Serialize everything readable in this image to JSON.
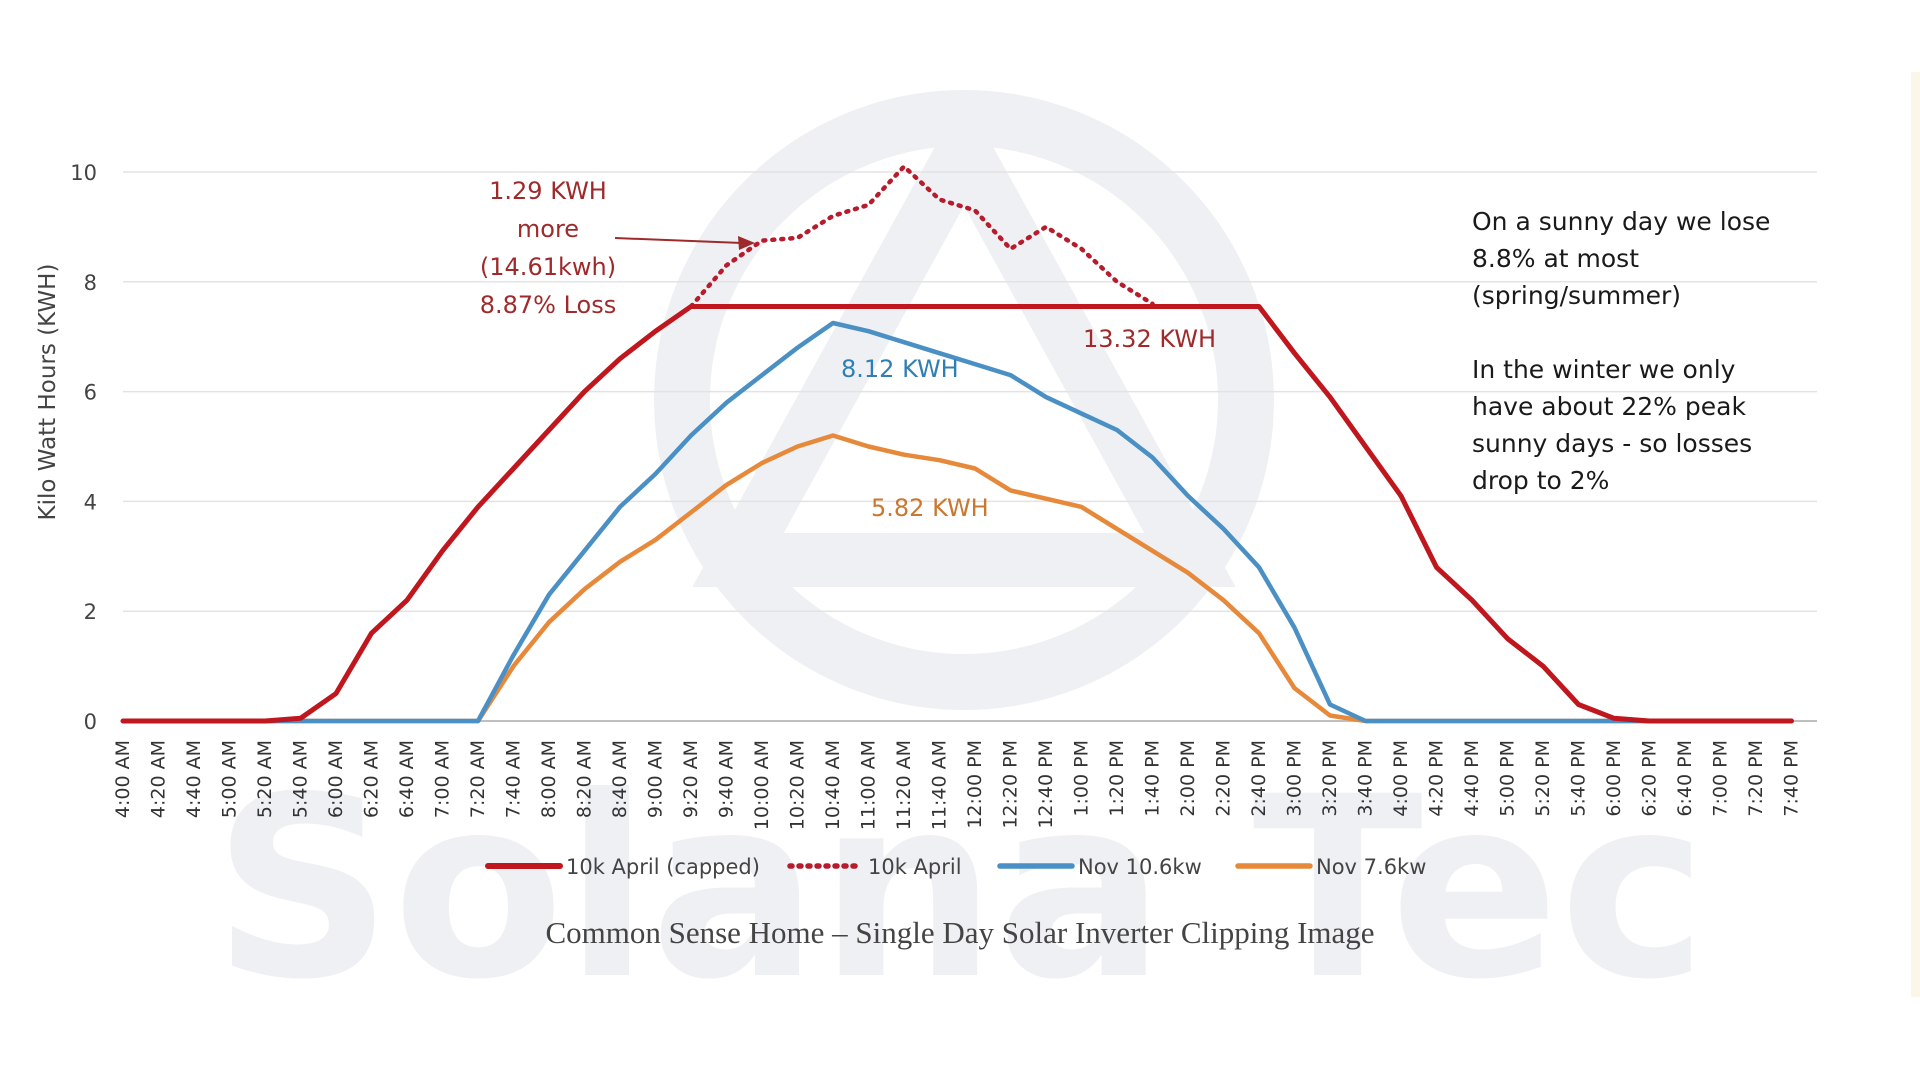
{
  "caption": "Common Sense Home – Single Day Solar Inverter Clipping Image",
  "watermark": "Solana Tec",
  "notes": {
    "sunny": [
      "On a sunny day we lose",
      "8.8% at most",
      "(spring/summer)"
    ],
    "winter": [
      "In the winter we only",
      "have about 22% peak",
      "sunny days - so losses",
      "drop to 2%"
    ]
  },
  "annotations": {
    "extra_lines": [
      "1.29 KWH",
      "more",
      "(14.61kwh)",
      "8.87% Loss"
    ],
    "capped_total": "13.32 KWH",
    "nov106_total": "8.12 KWH",
    "nov76_total": "5.82 KWH"
  },
  "colors": {
    "april_capped": "#c0161d",
    "april_dotted": "#b71c2c",
    "nov_106": "#4a90c4",
    "nov_76": "#e6893a",
    "annotation_red": "#9e2a2b",
    "annotation_blue": "#2f7fb6",
    "annotation_orange": "#c8782f",
    "watermark": "#eef0f4"
  },
  "chart_data": {
    "type": "line",
    "ylabel": "Kilo Watt Hours (KWH)",
    "xlabel": "",
    "ylim": [
      0,
      10
    ],
    "yticks": [
      0,
      2,
      4,
      6,
      8,
      10
    ],
    "grid": true,
    "legend_position": "bottom",
    "categories": [
      "4:00 AM",
      "4:20 AM",
      "4:40 AM",
      "5:00 AM",
      "5:20 AM",
      "5:40 AM",
      "6:00 AM",
      "6:20 AM",
      "6:40 AM",
      "7:00 AM",
      "7:20 AM",
      "7:40 AM",
      "8:00 AM",
      "8:20 AM",
      "8:40 AM",
      "9:00 AM",
      "9:20 AM",
      "9:40 AM",
      "10:00 AM",
      "10:20 AM",
      "10:40 AM",
      "11:00 AM",
      "11:20 AM",
      "11:40 AM",
      "12:00 PM",
      "12:20 PM",
      "12:40 PM",
      "1:00 PM",
      "1:20 PM",
      "1:40 PM",
      "2:00 PM",
      "2:20 PM",
      "2:40 PM",
      "3:00 PM",
      "3:20 PM",
      "3:40 PM",
      "4:00 PM",
      "4:20 PM",
      "4:40 PM",
      "5:00 PM",
      "5:20 PM",
      "5:40 PM",
      "6:00 PM",
      "6:20 PM",
      "6:40 PM",
      "7:00 PM",
      "7:20 PM",
      "7:40 PM"
    ],
    "series": [
      {
        "name": "10k April (capped)",
        "values": [
          0,
          0,
          0,
          0,
          0,
          0.05,
          0.5,
          1.6,
          2.2,
          3.1,
          3.9,
          4.6,
          5.3,
          6.0,
          6.6,
          7.1,
          7.55,
          7.55,
          7.55,
          7.55,
          7.55,
          7.55,
          7.55,
          7.55,
          7.55,
          7.55,
          7.55,
          7.55,
          7.55,
          7.55,
          7.55,
          7.55,
          7.55,
          6.7,
          5.9,
          5.0,
          4.1,
          2.8,
          2.2,
          1.5,
          1.0,
          0.3,
          0.05,
          0,
          0,
          0,
          0,
          0
        ]
      },
      {
        "name": "10k April",
        "values": [
          null,
          null,
          null,
          null,
          null,
          null,
          null,
          null,
          null,
          null,
          null,
          null,
          null,
          null,
          null,
          null,
          7.55,
          8.3,
          8.75,
          8.8,
          9.2,
          9.4,
          10.1,
          9.5,
          9.3,
          8.6,
          9.0,
          8.6,
          8.0,
          7.6,
          null,
          null,
          null,
          null,
          null,
          null,
          null,
          null,
          null,
          null,
          null,
          null,
          null,
          null,
          null,
          null,
          null,
          null
        ]
      },
      {
        "name": "Nov 10.6kw",
        "values": [
          0,
          0,
          0,
          0,
          0,
          0,
          0,
          0,
          0,
          0,
          0,
          1.2,
          2.3,
          3.1,
          3.9,
          4.5,
          5.2,
          5.8,
          6.3,
          6.8,
          7.25,
          7.1,
          6.9,
          6.7,
          6.5,
          6.3,
          5.9,
          5.6,
          5.3,
          4.8,
          4.1,
          3.5,
          2.8,
          1.7,
          0.3,
          0,
          0,
          0,
          0,
          0,
          0,
          0,
          0,
          0,
          0,
          0,
          0,
          0
        ]
      },
      {
        "name": "Nov 7.6kw",
        "values": [
          0,
          0,
          0,
          0,
          0,
          0,
          0,
          0,
          0,
          0,
          0,
          1.0,
          1.8,
          2.4,
          2.9,
          3.3,
          3.8,
          4.3,
          4.7,
          5.0,
          5.2,
          5.0,
          4.85,
          4.75,
          4.6,
          4.2,
          4.05,
          3.9,
          3.5,
          3.1,
          2.7,
          2.2,
          1.6,
          0.6,
          0.1,
          0,
          0,
          0,
          0,
          0,
          0,
          0,
          0,
          0,
          0,
          0,
          0,
          0
        ]
      }
    ]
  }
}
